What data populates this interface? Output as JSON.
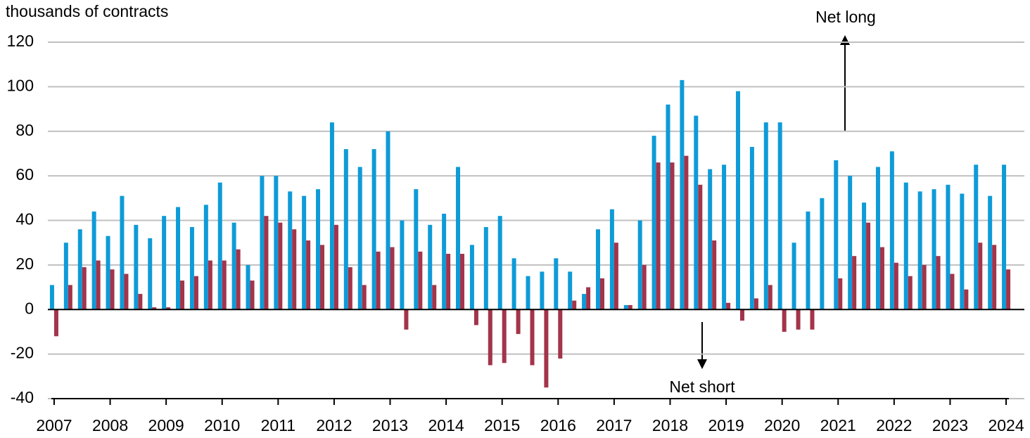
{
  "chart_data": {
    "type": "bar",
    "y_label": "thousands of contracts",
    "annotations": [
      "Net long",
      "Net short"
    ],
    "categories": [
      "2007",
      null,
      null,
      null,
      "2008",
      null,
      null,
      null,
      "2009",
      null,
      null,
      null,
      "2010",
      null,
      null,
      null,
      "2011",
      null,
      null,
      null,
      "2012",
      null,
      null,
      null,
      "2013",
      null,
      null,
      null,
      "2014",
      null,
      null,
      null,
      "2015",
      null,
      null,
      null,
      "2016",
      null,
      null,
      null,
      "2017",
      null,
      null,
      null,
      "2018",
      null,
      null,
      null,
      "2019",
      null,
      null,
      null,
      "2020",
      null,
      null,
      null,
      "2021",
      null,
      null,
      null,
      "2022",
      null,
      null,
      null,
      "2023",
      null,
      null,
      null,
      "2024"
    ],
    "series": [
      {
        "color": "#0e9bd8",
        "values": [
          11,
          30,
          36,
          44,
          33,
          51,
          38,
          32,
          42,
          46,
          37,
          47,
          57,
          39,
          20,
          60,
          60,
          53,
          51,
          54,
          84,
          72,
          64,
          72,
          80,
          40,
          54,
          38,
          43,
          64,
          29,
          37,
          42,
          23,
          15,
          17,
          23,
          17,
          7,
          36,
          45,
          2,
          40,
          78,
          92,
          103,
          87,
          63,
          65,
          98,
          73,
          84,
          84,
          30,
          44,
          50,
          67,
          60,
          48,
          64,
          71,
          57,
          53,
          54,
          56,
          52,
          65,
          51,
          65
        ]
      },
      {
        "color": "#a3344a",
        "values": [
          -12,
          11,
          19,
          22,
          18,
          16,
          7,
          1,
          1,
          13,
          15,
          22,
          22,
          27,
          13,
          42,
          39,
          36,
          31,
          29,
          38,
          19,
          11,
          26,
          28,
          -9,
          26,
          11,
          25,
          25,
          -7,
          -25,
          -24,
          -11,
          -25,
          -35,
          -22,
          4,
          10,
          14,
          30,
          2,
          20,
          66,
          66,
          69,
          56,
          31,
          3,
          -5,
          5,
          11,
          -10,
          -9,
          -9,
          0,
          14,
          24,
          39,
          28,
          21,
          15,
          20,
          24,
          16,
          9,
          30,
          29,
          18
        ]
      }
    ],
    "ylim": [
      -40,
      120
    ],
    "yticks": [
      -40,
      -20,
      0,
      20,
      40,
      60,
      80,
      100,
      120
    ],
    "grid": true
  }
}
